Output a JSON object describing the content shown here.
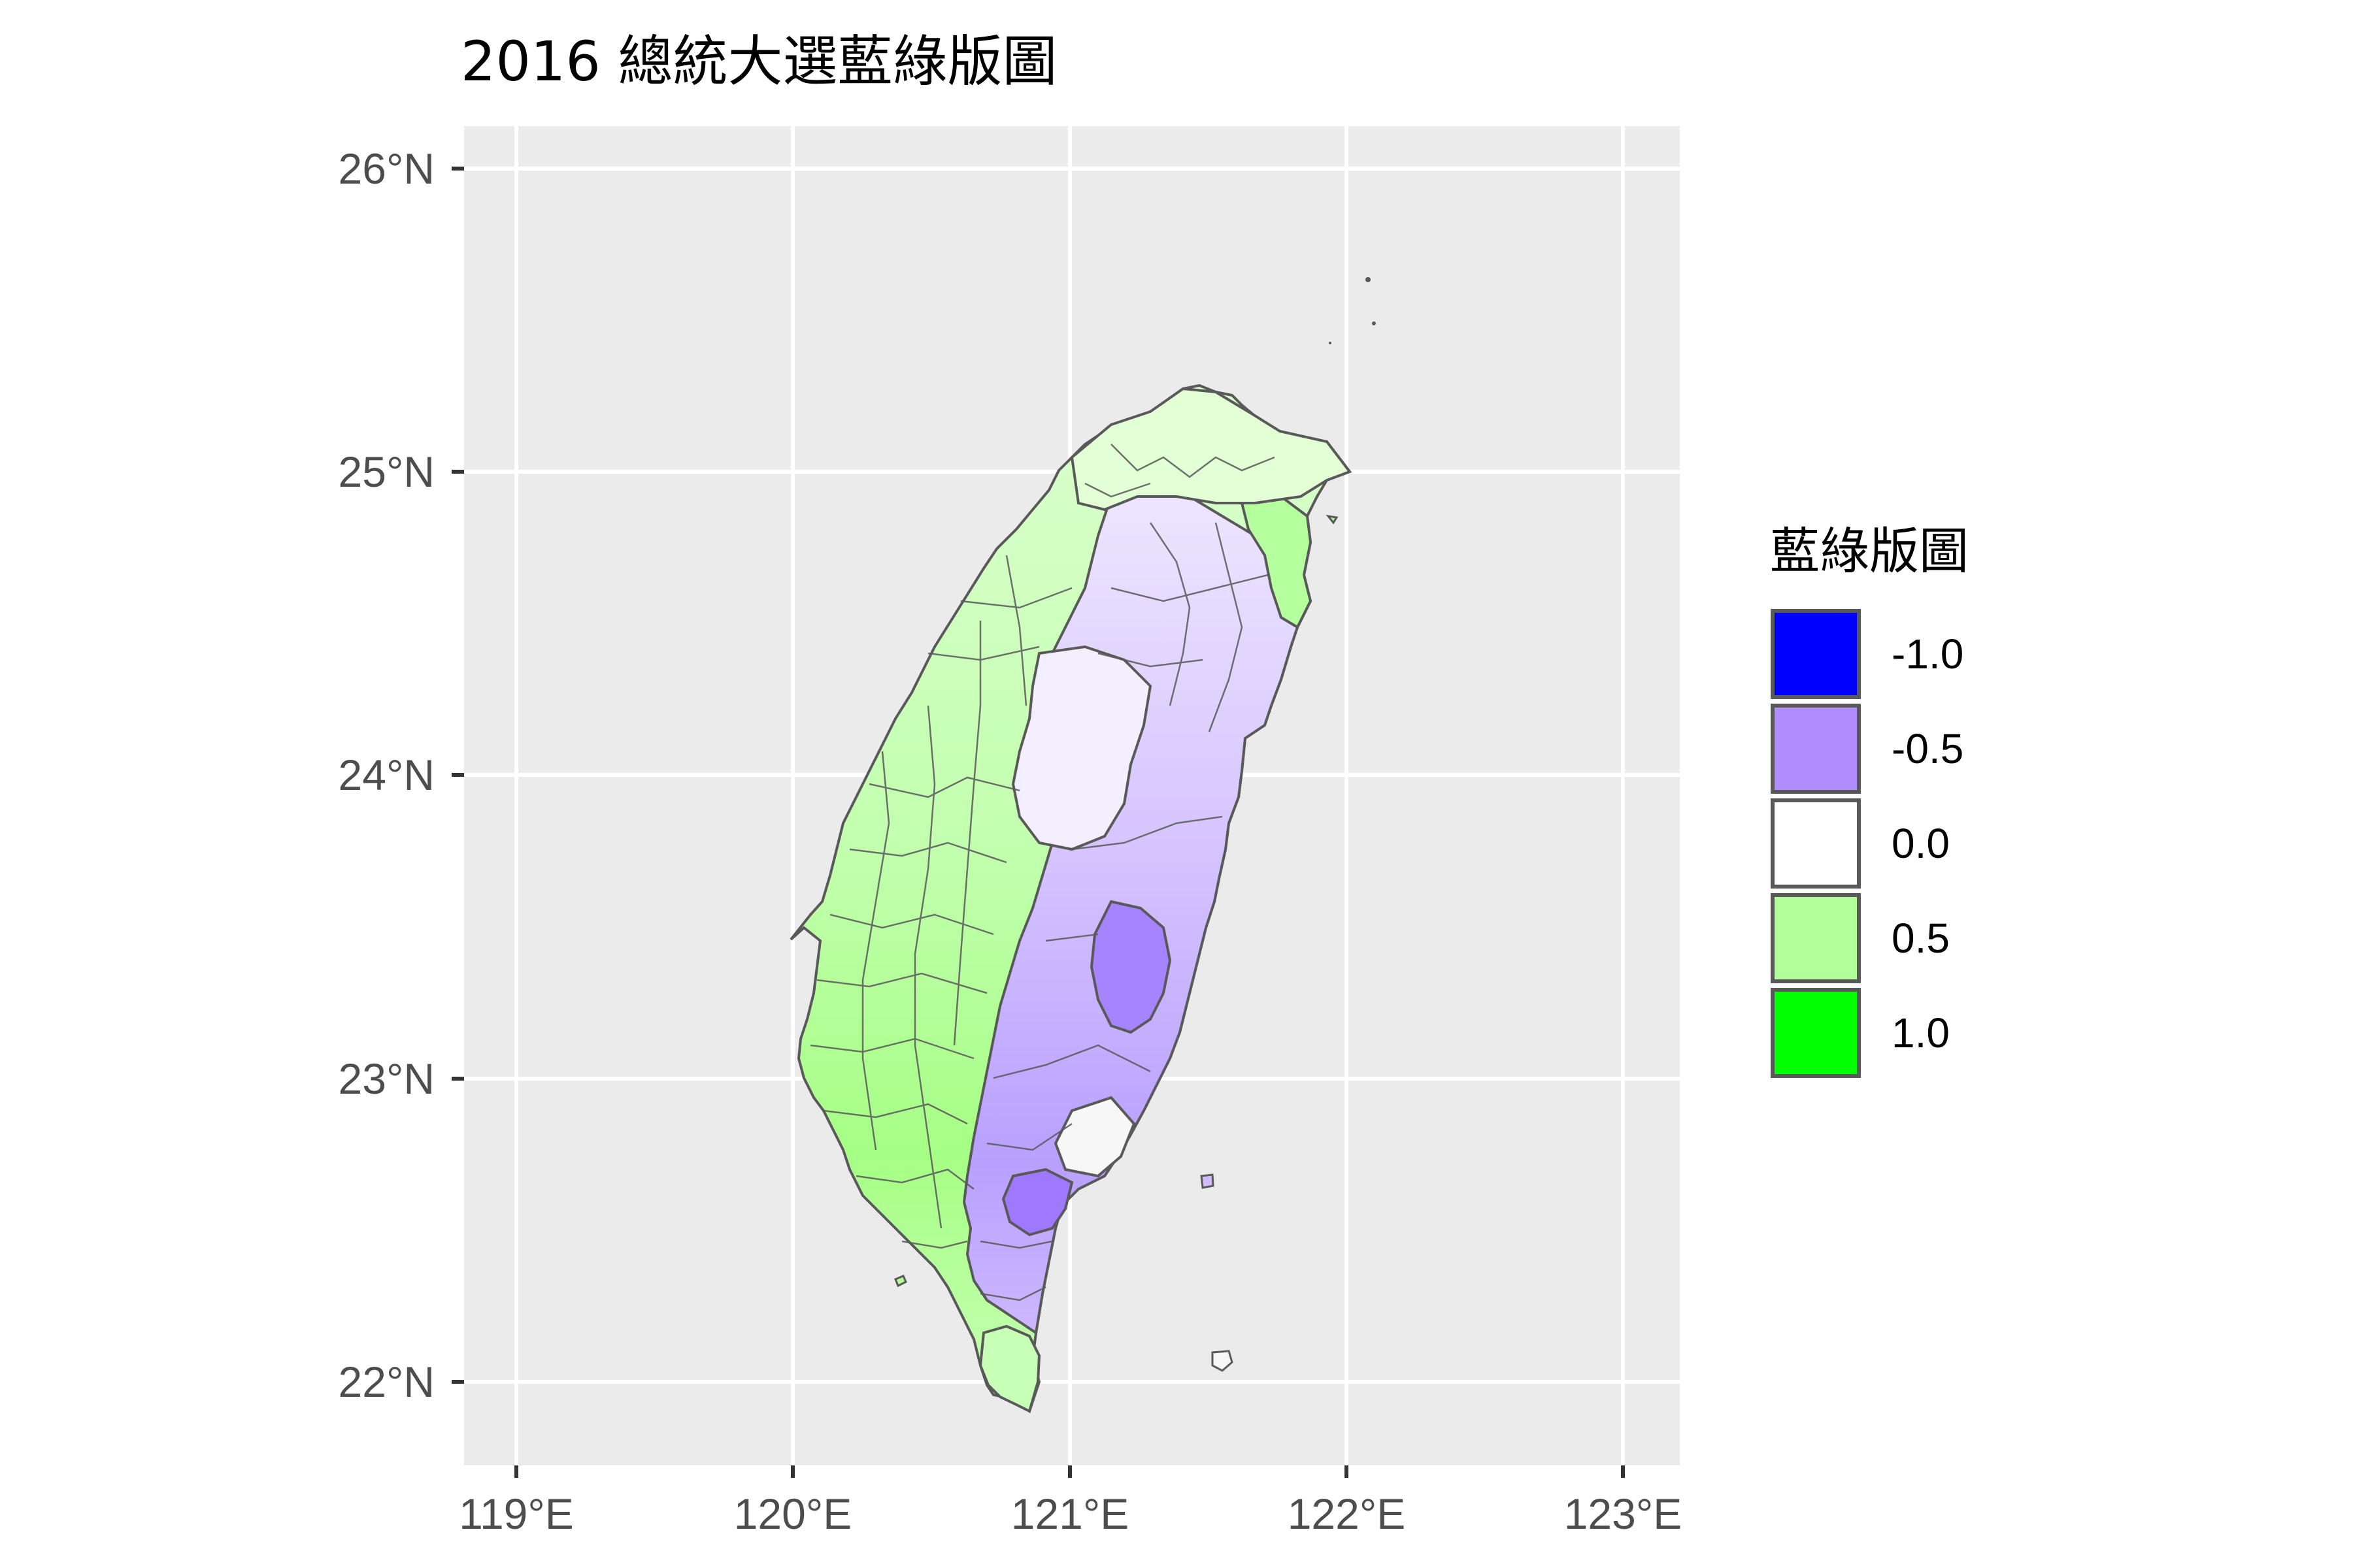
{
  "chart_data": {
    "type": "map",
    "title": "2016 總統大選藍綠版圖",
    "xlabel": "",
    "ylabel": "",
    "x_ticks": [
      "119°E",
      "120°E",
      "121°E",
      "122°E",
      "123°E"
    ],
    "y_ticks": [
      "26°N",
      "25°N",
      "24°N",
      "23°N",
      "22°N"
    ],
    "xlim": [
      118.8,
      123.2
    ],
    "ylim": [
      21.7,
      26.15
    ],
    "grid": true,
    "legend_position": "right",
    "legend": {
      "title": "藍綠版圖",
      "entries": [
        {
          "label": "-1.0",
          "value": -1.0,
          "color": "#0000ff"
        },
        {
          "label": "-0.5",
          "value": -0.5,
          "color": "#b08cff"
        },
        {
          "label": "0.0",
          "value": 0.0,
          "color": "#ffffff"
        },
        {
          "label": "0.5",
          "value": 0.5,
          "color": "#b2ff99"
        },
        {
          "label": "1.0",
          "value": 1.0,
          "color": "#00ff00"
        }
      ]
    },
    "panel_background": "#ebebeb",
    "gridline_color": "#ffffff",
    "border_color": "#595959"
  }
}
